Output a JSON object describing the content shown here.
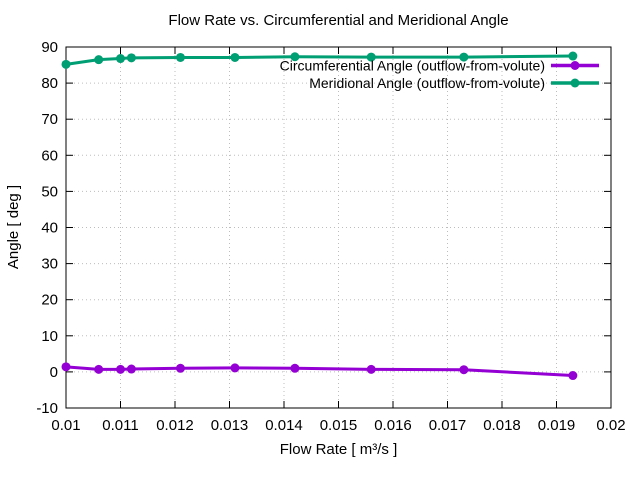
{
  "page": {
    "background_color": "#ffffff"
  },
  "chart_data": {
    "type": "line",
    "title": "Flow Rate vs. Circumferential and Meridional Angle",
    "xlabel": "Flow Rate [ m³/s ]",
    "ylabel": "Angle [ deg ]",
    "xlim": [
      0.01,
      0.02
    ],
    "ylim": [
      -10,
      90
    ],
    "grid": true,
    "grid_style": "dotted",
    "legend_position": "top-right-inside",
    "axis_color": "#000000",
    "grid_color": "#bdbdbd",
    "x_ticks": {
      "values": [
        0.01,
        0.011,
        0.012,
        0.013,
        0.014,
        0.015,
        0.016,
        0.017,
        0.018,
        0.019,
        0.02
      ],
      "labels": [
        "0.01",
        "0.011",
        "0.012",
        "0.013",
        "0.014",
        "0.015",
        "0.016",
        "0.017",
        "0.018",
        "0.019",
        "0.02"
      ]
    },
    "y_ticks": {
      "values": [
        -10,
        0,
        10,
        20,
        30,
        40,
        50,
        60,
        70,
        80,
        90
      ],
      "labels": [
        "-10",
        "0",
        "10",
        "20",
        "30",
        "40",
        "50",
        "60",
        "70",
        "80",
        "90"
      ]
    },
    "x": [
      0.01,
      0.0106,
      0.011,
      0.0112,
      0.0121,
      0.0131,
      0.0142,
      0.0156,
      0.0173,
      0.0193
    ],
    "series": [
      {
        "name": "Circumferential Angle (outflow-from-volute)",
        "color": "#9400D3",
        "marker": "circle",
        "values": [
          1.4,
          0.7,
          0.7,
          0.8,
          1.0,
          1.1,
          1.0,
          0.7,
          0.6,
          -1.0
        ]
      },
      {
        "name": "Meridional Angle (outflow-from-volute)",
        "color": "#009E73",
        "marker": "circle",
        "values": [
          85.2,
          86.5,
          86.8,
          87.0,
          87.1,
          87.1,
          87.3,
          87.2,
          87.2,
          87.5
        ]
      }
    ]
  }
}
